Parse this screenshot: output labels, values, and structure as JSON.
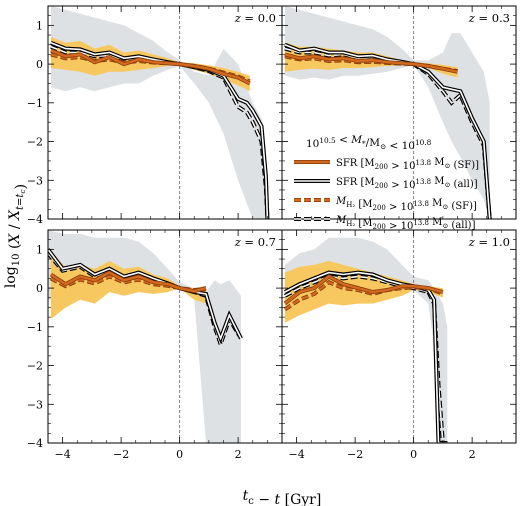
{
  "colors": {
    "sf_line": "#d2691e",
    "sf_band": "#f7c860",
    "all_band": "#dde1e4",
    "all_line": "#000000",
    "vline": "#777777"
  },
  "chart_data": {
    "type": "line",
    "xlabel": "t_c − t [Gyr]",
    "ylabel": "log10 (X / X_{t=tc})",
    "xlim": [
      -4.5,
      3.5
    ],
    "ylim": [
      -4,
      1.5
    ],
    "xticks": [
      -4,
      -2,
      0,
      2
    ],
    "yticks": [
      1,
      0,
      -1,
      -2,
      -3,
      -4
    ],
    "vline_x": 0,
    "legend": {
      "title": "10^10.5 < M*/M⊙ < 10^10.8",
      "entries": [
        "SFR [M200 > 10^13.8 M⊙ (SF)]",
        "SFR [M200 > 10^13.8 M⊙ (all)]",
        "M_H2 [M200 > 10^13.8 M⊙ (SF)]",
        "M_H2 [M200 > 10^13.8 M⊙ (all)]"
      ]
    },
    "panels": [
      {
        "label": "z = 0.0",
        "sf_x": [
          -4.4,
          -3.9,
          -3.4,
          -2.9,
          -2.4,
          -1.9,
          -1.4,
          -0.9,
          -0.4,
          0,
          0.5,
          1.0,
          1.5,
          2.0,
          2.4
        ],
        "sfr_sf": [
          0.35,
          0.2,
          0.25,
          0.05,
          0.18,
          0.0,
          0.12,
          0.05,
          0.02,
          0.0,
          -0.05,
          -0.12,
          -0.25,
          -0.35,
          -0.5
        ],
        "mh2_sf": [
          0.25,
          0.15,
          0.18,
          0.08,
          0.12,
          0.04,
          0.08,
          0.04,
          0.02,
          0.0,
          -0.05,
          -0.12,
          -0.22,
          -0.32,
          -0.45
        ],
        "sf_band_hi": [
          0.7,
          0.55,
          0.6,
          0.4,
          0.5,
          0.3,
          0.35,
          0.25,
          0.15,
          0.05,
          0.02,
          -0.03,
          -0.1,
          -0.2,
          -0.3
        ],
        "sf_band_lo": [
          -0.1,
          -0.15,
          -0.2,
          -0.3,
          -0.2,
          -0.2,
          -0.15,
          -0.1,
          -0.05,
          0.0,
          -0.15,
          -0.25,
          -0.4,
          -0.55,
          -0.7
        ],
        "all_x": [
          -4.4,
          -3.9,
          -3.4,
          -2.9,
          -2.4,
          -1.9,
          -1.4,
          -0.9,
          -0.4,
          0,
          0.5,
          1.0,
          1.5,
          2.0,
          2.3,
          2.5,
          2.8,
          2.95,
          3.0
        ],
        "sfr_all": [
          0.55,
          0.4,
          0.38,
          0.25,
          0.3,
          0.15,
          0.2,
          0.12,
          0.05,
          0.0,
          -0.08,
          -0.15,
          -0.3,
          -0.9,
          -1.0,
          -1.2,
          -1.6,
          -2.9,
          -4.0
        ],
        "mh2_all": [
          0.45,
          0.3,
          0.3,
          0.2,
          0.22,
          0.12,
          0.14,
          0.08,
          0.04,
          0.0,
          -0.08,
          -0.18,
          -0.35,
          -1.1,
          -1.25,
          -1.5,
          -2.0,
          -3.2,
          -4.0
        ],
        "all_band_hi": [
          1.5,
          1.4,
          1.3,
          1.2,
          1.1,
          1.0,
          0.8,
          0.6,
          0.3,
          0.1,
          -0.2,
          -0.3,
          0.4,
          0.0,
          -0.6,
          -1.0,
          -1.4,
          -3.0,
          -4.0
        ],
        "all_band_lo": [
          -0.6,
          -0.7,
          -0.6,
          -0.7,
          -0.6,
          -0.5,
          -0.5,
          -0.3,
          -0.15,
          -0.05,
          -0.5,
          -1.0,
          -1.8,
          -3.0,
          -3.6,
          -4.0,
          -4.0,
          -4.0,
          -4.0
        ]
      },
      {
        "label": "z = 0.3",
        "sf_x": [
          -4.4,
          -3.9,
          -3.4,
          -2.9,
          -2.4,
          -1.9,
          -1.4,
          -0.9,
          -0.4,
          0,
          0.5,
          1.0,
          1.5
        ],
        "sfr_sf": [
          0.25,
          0.15,
          0.2,
          0.12,
          0.15,
          0.08,
          0.1,
          0.05,
          0.02,
          0.0,
          -0.05,
          -0.12,
          -0.2
        ],
        "mh2_sf": [
          0.2,
          0.12,
          0.15,
          0.08,
          0.1,
          0.05,
          0.06,
          0.03,
          0.01,
          0.0,
          -0.05,
          -0.12,
          -0.18
        ],
        "sf_band_hi": [
          0.55,
          0.45,
          0.45,
          0.4,
          0.35,
          0.3,
          0.3,
          0.2,
          0.1,
          0.05,
          0.02,
          -0.02,
          -0.08
        ],
        "sf_band_lo": [
          -0.2,
          -0.15,
          -0.12,
          -0.15,
          -0.1,
          -0.1,
          -0.08,
          -0.05,
          -0.03,
          0.0,
          -0.1,
          -0.25,
          -0.35
        ],
        "all_x": [
          -4.4,
          -3.9,
          -3.4,
          -2.9,
          -2.4,
          -1.9,
          -1.4,
          -0.9,
          -0.4,
          0,
          0.5,
          1.0,
          1.3,
          1.6,
          2.0,
          2.4,
          2.6
        ],
        "sfr_all": [
          0.5,
          0.35,
          0.4,
          0.3,
          0.3,
          0.2,
          0.22,
          0.12,
          0.06,
          0.0,
          -0.2,
          -0.6,
          -0.65,
          -0.7,
          -1.4,
          -2.0,
          -4.0
        ],
        "mh2_all": [
          0.4,
          0.3,
          0.3,
          0.22,
          0.25,
          0.15,
          0.18,
          0.1,
          0.05,
          0.0,
          -0.25,
          -0.7,
          -1.0,
          -0.8,
          -1.5,
          -2.1,
          -4.0
        ],
        "all_band_hi": [
          1.5,
          1.4,
          1.3,
          1.2,
          1.1,
          1.0,
          0.9,
          0.7,
          0.4,
          0.1,
          0.1,
          0.3,
          0.8,
          0.8,
          0.3,
          -0.2,
          -1.0
        ],
        "all_band_lo": [
          -0.3,
          -0.4,
          -0.35,
          -0.4,
          -0.3,
          -0.3,
          -0.25,
          -0.2,
          -0.1,
          -0.02,
          -0.6,
          -1.5,
          -2.0,
          -2.4,
          -3.0,
          -3.5,
          -4.0
        ]
      },
      {
        "label": "z = 0.7",
        "sf_x": [
          -4.4,
          -3.9,
          -3.4,
          -2.9,
          -2.4,
          -1.9,
          -1.4,
          -0.9,
          -0.4,
          0,
          0.5,
          0.9
        ],
        "sfr_sf": [
          0.35,
          0.1,
          0.3,
          0.2,
          0.4,
          0.2,
          0.3,
          0.15,
          0.1,
          0.0,
          -0.08,
          0.0
        ],
        "mh2_sf": [
          0.25,
          0.05,
          0.22,
          0.12,
          0.3,
          0.15,
          0.22,
          0.1,
          0.06,
          0.0,
          -0.05,
          -0.02
        ],
        "sf_band_hi": [
          0.9,
          0.55,
          0.6,
          0.5,
          0.7,
          0.5,
          0.55,
          0.35,
          0.25,
          0.05,
          0.0,
          0.05
        ],
        "sf_band_lo": [
          -0.8,
          -0.5,
          -0.3,
          -0.4,
          -0.1,
          -0.2,
          -0.1,
          -0.15,
          -0.1,
          0.0,
          -0.3,
          -0.4
        ],
        "all_x": [
          -4.5,
          -4.0,
          -3.4,
          -2.9,
          -2.4,
          -1.9,
          -1.4,
          -0.9,
          -0.4,
          0,
          0.5,
          0.9,
          1.2,
          1.4,
          1.7,
          2.1
        ],
        "sfr_all": [
          1.0,
          0.5,
          0.6,
          0.35,
          0.5,
          0.3,
          0.4,
          0.25,
          0.12,
          0.0,
          -0.1,
          -0.15,
          -0.9,
          -1.3,
          -0.7,
          -1.3
        ],
        "mh2_all": [
          0.9,
          0.45,
          0.55,
          0.3,
          0.45,
          0.25,
          0.35,
          0.2,
          0.1,
          0.0,
          -0.1,
          -0.2,
          -1.0,
          -1.45,
          -0.8,
          -1.3
        ],
        "all_band_hi": [
          1.5,
          1.4,
          1.4,
          1.3,
          1.3,
          1.3,
          1.2,
          0.9,
          0.5,
          0.15,
          0.0,
          -0.1,
          0.2,
          0.1,
          0.2,
          -0.2
        ],
        "all_band_lo": [
          -0.3,
          -0.3,
          -0.2,
          -0.3,
          -0.1,
          -0.2,
          -0.1,
          -0.15,
          -0.1,
          0.0,
          -0.3,
          -4.0,
          -4.0,
          -4.0,
          -4.0,
          -4.0
        ]
      },
      {
        "label": "z = 1.0",
        "sf_x": [
          -4.4,
          -3.9,
          -3.4,
          -2.9,
          -2.4,
          -1.9,
          -1.4,
          -0.9,
          -0.4,
          0,
          0.5,
          1.0
        ],
        "sfr_sf": [
          -0.4,
          -0.1,
          0.0,
          0.3,
          0.1,
          0.0,
          -0.1,
          -0.05,
          0.05,
          0.05,
          0.0,
          -0.1
        ],
        "mh2_sf": [
          -0.55,
          -0.3,
          -0.15,
          0.15,
          0.0,
          -0.05,
          -0.15,
          -0.05,
          0.0,
          0.02,
          0.0,
          -0.15
        ],
        "sf_band_hi": [
          0.4,
          0.55,
          0.6,
          0.7,
          0.6,
          0.5,
          0.4,
          0.3,
          0.2,
          0.1,
          0.05,
          0.0
        ],
        "sf_band_lo": [
          -0.9,
          -0.7,
          -0.55,
          -0.4,
          -0.45,
          -0.4,
          -0.4,
          -0.3,
          -0.2,
          -0.05,
          -0.1,
          -0.25
        ],
        "all_x": [
          -4.4,
          -3.9,
          -3.4,
          -2.9,
          -2.4,
          -1.9,
          -1.4,
          -0.9,
          -0.4,
          0,
          0.5,
          0.7,
          0.85,
          1.0,
          1.15
        ],
        "sfr_all": [
          -0.1,
          0.1,
          0.25,
          0.4,
          0.35,
          0.4,
          0.35,
          0.2,
          0.1,
          0.05,
          -0.05,
          -0.3,
          -4.0,
          -4.0,
          -4.0
        ],
        "mh2_all": [
          -0.2,
          0.0,
          0.15,
          0.3,
          0.25,
          0.3,
          0.25,
          0.15,
          0.05,
          0.0,
          -0.1,
          -0.4,
          -2.5,
          -4.0,
          -4.0
        ],
        "all_band_hi": [
          0.6,
          0.9,
          1.0,
          1.3,
          1.3,
          1.3,
          1.2,
          1.0,
          0.6,
          0.3,
          0.2,
          0.0,
          -0.2,
          -0.4,
          -1.0
        ],
        "all_band_lo": [
          -0.4,
          -0.4,
          -0.3,
          -0.3,
          -0.3,
          -0.2,
          -0.2,
          -0.15,
          -0.1,
          -0.05,
          -0.4,
          -1.5,
          -4.0,
          -4.0,
          -4.0
        ]
      }
    ]
  }
}
